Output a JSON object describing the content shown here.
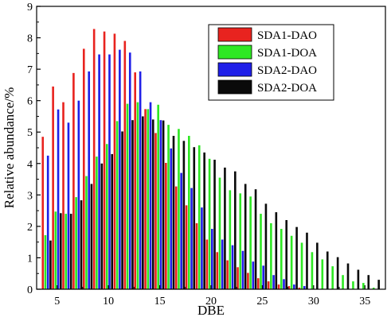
{
  "chart_data": {
    "type": "bar",
    "title": "",
    "xlabel": "DBE",
    "ylabel": "Relative abundance/%",
    "xlim": [
      3,
      37
    ],
    "ylim": [
      0,
      9
    ],
    "xticks": [
      "5",
      "10",
      "15",
      "20",
      "25",
      "30",
      "35"
    ],
    "yticks": [
      "0",
      "1",
      "2",
      "3",
      "4",
      "5",
      "6",
      "7",
      "8",
      "9"
    ],
    "grid": false,
    "legend_position": "top-right",
    "x": [
      4,
      5,
      6,
      7,
      8,
      9,
      10,
      11,
      12,
      13,
      14,
      15,
      16,
      17,
      18,
      19,
      20,
      21,
      22,
      23,
      24,
      25,
      26,
      27,
      28,
      29,
      30,
      31,
      32,
      33,
      34,
      35,
      36
    ],
    "series": [
      {
        "name": "SDA1-DAO",
        "color": "#e8231f",
        "values": [
          4.85,
          6.45,
          5.95,
          6.88,
          7.65,
          8.28,
          8.2,
          8.13,
          7.9,
          6.9,
          5.73,
          4.97,
          4.02,
          3.27,
          2.67,
          2.1,
          1.58,
          1.18,
          0.92,
          0.7,
          0.52,
          0.35,
          0.25,
          0.15,
          0.1,
          0.05,
          0.0,
          0.0,
          0.0,
          0.0,
          0.0,
          0.0,
          0.0
        ]
      },
      {
        "name": "SDA1-DOA",
        "color": "#2ee823",
        "values": [
          1.72,
          2.47,
          2.4,
          2.93,
          3.6,
          4.22,
          4.62,
          5.35,
          5.9,
          5.95,
          5.73,
          5.87,
          5.23,
          5.1,
          4.88,
          4.58,
          4.15,
          3.55,
          3.15,
          3.05,
          2.95,
          2.4,
          2.1,
          1.92,
          1.7,
          1.48,
          1.18,
          0.95,
          0.73,
          0.45,
          0.25,
          0.2,
          0.05
        ]
      },
      {
        "name": "SDA2-DAO",
        "color": "#1f1fe8",
        "values": [
          4.25,
          5.72,
          5.3,
          6.0,
          6.93,
          7.47,
          7.47,
          7.62,
          7.53,
          6.93,
          5.95,
          5.38,
          4.48,
          3.7,
          3.22,
          2.6,
          1.92,
          1.58,
          1.4,
          1.22,
          0.88,
          0.75,
          0.45,
          0.32,
          0.15,
          0.1,
          0.0,
          0.0,
          0.0,
          0.0,
          0.0,
          0.0,
          0.0
        ]
      },
      {
        "name": "SDA2-DOA",
        "color": "#0a0a0a",
        "values": [
          1.55,
          2.42,
          2.4,
          2.83,
          3.35,
          4.0,
          4.3,
          5.02,
          5.38,
          5.5,
          5.4,
          5.37,
          4.88,
          4.72,
          4.52,
          4.35,
          4.12,
          3.87,
          3.75,
          3.35,
          3.18,
          2.72,
          2.45,
          2.2,
          1.98,
          1.8,
          1.48,
          1.2,
          1.02,
          0.82,
          0.62,
          0.45,
          0.3
        ]
      }
    ]
  }
}
